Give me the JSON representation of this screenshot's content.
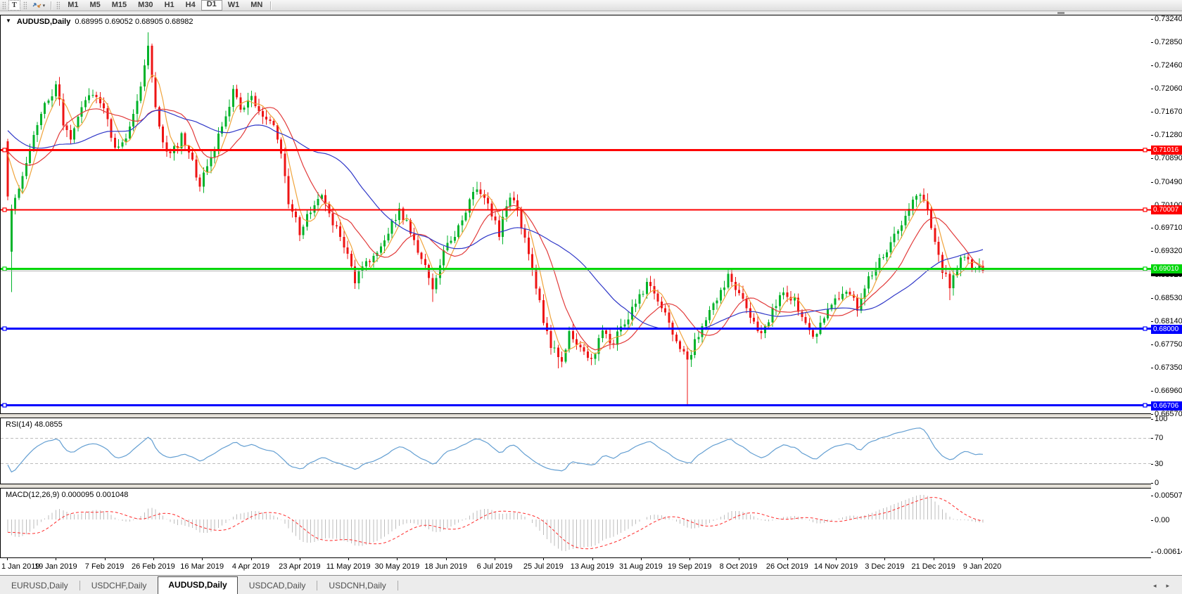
{
  "toolbar": {
    "tool_button": "T",
    "timeframes": [
      "M1",
      "M5",
      "M15",
      "M30",
      "H1",
      "H4",
      "D1",
      "W1",
      "MN"
    ],
    "active_timeframe": "D1"
  },
  "header": {
    "symbol": "AUDUSD,Daily",
    "ohlc": "0.68995 0.69052 0.68905 0.68982",
    "open": "0.68995",
    "high": "0.69052",
    "low": "0.68905",
    "close": "0.68982"
  },
  "price_axis": {
    "ticks": [
      "0.73240",
      "0.72850",
      "0.72460",
      "0.72060",
      "0.71670",
      "0.71280",
      "0.70890",
      "0.70490",
      "0.70100",
      "0.69710",
      "0.69320",
      "0.68920",
      "0.68530",
      "0.68140",
      "0.67750",
      "0.67350",
      "0.66960",
      "0.66570"
    ]
  },
  "date_axis": {
    "ticks": [
      "1 Jan 2019",
      "19 Jan 2019",
      "7 Feb 2019",
      "26 Feb 2019",
      "16 Mar 2019",
      "4 Apr 2019",
      "23 Apr 2019",
      "11 May 2019",
      "30 May 2019",
      "18 Jun 2019",
      "6 Jul 2019",
      "25 Jul 2019",
      "13 Aug 2019",
      "31 Aug 2019",
      "19 Sep 2019",
      "8 Oct 2019",
      "26 Oct 2019",
      "14 Nov 2019",
      "3 Dec 2019",
      "21 Dec 2019",
      "9 Jan 2020"
    ]
  },
  "hlines": [
    {
      "price": 0.71016,
      "label": "0.71016",
      "color": "#fe0000",
      "width": 3
    },
    {
      "price": 0.70007,
      "label": "0.70007",
      "color": "#fe0000",
      "width": 2
    },
    {
      "price": 0.6901,
      "label": "0.69010",
      "color": "#00d60a",
      "width": 3
    },
    {
      "price": 0.68,
      "label": "0.68000",
      "color": "#0000fe",
      "width": 3
    },
    {
      "price": 0.66706,
      "label": "0.66706",
      "color": "#0000fe",
      "width": 3
    }
  ],
  "bid": {
    "price": 0.68982,
    "label": "0.68982",
    "line_color": "#b5b5b5",
    "label_bg": "#000000"
  },
  "panes": {
    "rsi": {
      "label": "RSI(14)",
      "value": "48.0855",
      "levels": [
        "100",
        "70",
        "30",
        "0"
      ],
      "level_lines": [
        70,
        30
      ]
    },
    "macd": {
      "label": "MACD(12,26,9)",
      "value_main": "0.000095",
      "value_signal": "0.001048",
      "axis_top": "0.005076",
      "axis_zero": "0.00",
      "axis_bottom": "-0.006148"
    }
  },
  "tabs": {
    "items": [
      "EURUSD,Daily",
      "USDCHF,Daily",
      "AUDUSD,Daily",
      "USDCAD,Daily",
      "USDCNH,Daily"
    ],
    "active": "AUDUSD,Daily"
  },
  "colors": {
    "up": "#00b32a",
    "down": "#ee1414",
    "ma_fast": "#f0a43c",
    "ma_mid": "#e23b3b",
    "ma_slow": "#3038c8",
    "rsi_line": "#649fd2",
    "rsi_levels": "#bcbcbc",
    "macd_hist": "#bdbdbd",
    "macd_signal": "#ff2a2a",
    "frame": "#000000",
    "background": "#ffffff"
  },
  "chart_data": {
    "type": "candlestick",
    "title": "AUDUSD,Daily",
    "bars": 265,
    "price_range": {
      "top": 0.7324,
      "bottom": 0.6657
    },
    "ylabel_ticks_step": "0.0039-0.0040",
    "grid": false,
    "pre_anchors": [
      [
        -40,
        0.727
      ],
      [
        -25,
        0.7165
      ],
      [
        -12,
        0.709
      ],
      [
        -1,
        0.7118
      ]
    ],
    "close_anchors": [
      [
        0,
        0.7025
      ],
      [
        1,
        0.7005
      ],
      [
        3,
        0.704
      ],
      [
        6,
        0.71
      ],
      [
        10,
        0.718
      ],
      [
        13,
        0.7208
      ],
      [
        15,
        0.715
      ],
      [
        17,
        0.7125
      ],
      [
        20,
        0.7168
      ],
      [
        23,
        0.72
      ],
      [
        26,
        0.7165
      ],
      [
        29,
        0.7108
      ],
      [
        32,
        0.7128
      ],
      [
        35,
        0.718
      ],
      [
        37,
        0.724
      ],
      [
        38,
        0.7285
      ],
      [
        39,
        0.7228
      ],
      [
        41,
        0.7135
      ],
      [
        44,
        0.709
      ],
      [
        47,
        0.7122
      ],
      [
        50,
        0.7078
      ],
      [
        52,
        0.7045
      ],
      [
        55,
        0.709
      ],
      [
        58,
        0.7138
      ],
      [
        61,
        0.7202
      ],
      [
        63,
        0.7172
      ],
      [
        66,
        0.7188
      ],
      [
        69,
        0.7155
      ],
      [
        72,
        0.7142
      ],
      [
        74,
        0.709
      ],
      [
        76,
        0.7018
      ],
      [
        79,
        0.6962
      ],
      [
        82,
        0.7002
      ],
      [
        85,
        0.7018
      ],
      [
        88,
        0.6982
      ],
      [
        91,
        0.6938
      ],
      [
        94,
        0.6882
      ],
      [
        97,
        0.6908
      ],
      [
        100,
        0.6932
      ],
      [
        103,
        0.6968
      ],
      [
        106,
        0.7002
      ],
      [
        109,
        0.6962
      ],
      [
        112,
        0.6918
      ],
      [
        115,
        0.6872
      ],
      [
        118,
        0.6928
      ],
      [
        121,
        0.6962
      ],
      [
        124,
        0.7002
      ],
      [
        127,
        0.7038
      ],
      [
        130,
        0.7012
      ],
      [
        133,
        0.6962
      ],
      [
        136,
        0.7022
      ],
      [
        138,
        0.7002
      ],
      [
        140,
        0.6952
      ],
      [
        142,
        0.69
      ],
      [
        144,
        0.6845
      ],
      [
        146,
        0.6788
      ],
      [
        148,
        0.676
      ],
      [
        150,
        0.6748
      ],
      [
        152,
        0.6792
      ],
      [
        155,
        0.6772
      ],
      [
        158,
        0.6748
      ],
      [
        161,
        0.6792
      ],
      [
        164,
        0.6778
      ],
      [
        167,
        0.6808
      ],
      [
        170,
        0.6842
      ],
      [
        173,
        0.6878
      ],
      [
        176,
        0.6852
      ],
      [
        179,
        0.6808
      ],
      [
        182,
        0.6772
      ],
      [
        184,
        0.6742
      ],
      [
        186,
        0.6778
      ],
      [
        189,
        0.6812
      ],
      [
        192,
        0.6852
      ],
      [
        195,
        0.6888
      ],
      [
        198,
        0.6862
      ],
      [
        201,
        0.6822
      ],
      [
        204,
        0.6788
      ],
      [
        207,
        0.6828
      ],
      [
        210,
        0.6862
      ],
      [
        213,
        0.6848
      ],
      [
        216,
        0.6812
      ],
      [
        218,
        0.6782
      ],
      [
        221,
        0.6822
      ],
      [
        224,
        0.6852
      ],
      [
        227,
        0.6868
      ],
      [
        230,
        0.6838
      ],
      [
        233,
        0.6882
      ],
      [
        236,
        0.6918
      ],
      [
        239,
        0.6942
      ],
      [
        242,
        0.6978
      ],
      [
        245,
        0.7012
      ],
      [
        247,
        0.7025
      ],
      [
        249,
        0.6992
      ],
      [
        251,
        0.6942
      ],
      [
        253,
        0.6902
      ],
      [
        255,
        0.6872
      ],
      [
        257,
        0.6908
      ],
      [
        259,
        0.6928
      ],
      [
        261,
        0.6898
      ],
      [
        263,
        0.6912
      ],
      [
        264,
        0.68982
      ]
    ],
    "open_overrides": {
      "1": 0.693
    },
    "wick_overrides": {
      "1": {
        "low": 0.6862
      },
      "38": {
        "high": 0.73
      },
      "115": {
        "low": 0.6845
      },
      "149": {
        "low": 0.6733
      },
      "184": {
        "low": 0.6672
      },
      "255": {
        "low": 0.6848
      }
    },
    "moving_averages": [
      {
        "type": "sma",
        "period": 5,
        "color": "#f0a43c"
      },
      {
        "type": "sma",
        "period": 13,
        "color": "#e23b3b"
      },
      {
        "type": "sma",
        "period": 34,
        "color": "#3038c8"
      }
    ],
    "indicators": [
      {
        "name": "RSI",
        "period": 14,
        "current": 48.0855,
        "range": [
          0,
          100
        ],
        "levels": [
          70,
          30
        ]
      },
      {
        "name": "MACD",
        "fast": 12,
        "slow": 26,
        "signal": 9,
        "current_main": 9.5e-05,
        "current_signal": 0.001048,
        "scale_max": 0.005076,
        "scale_min": -0.006148
      }
    ]
  }
}
